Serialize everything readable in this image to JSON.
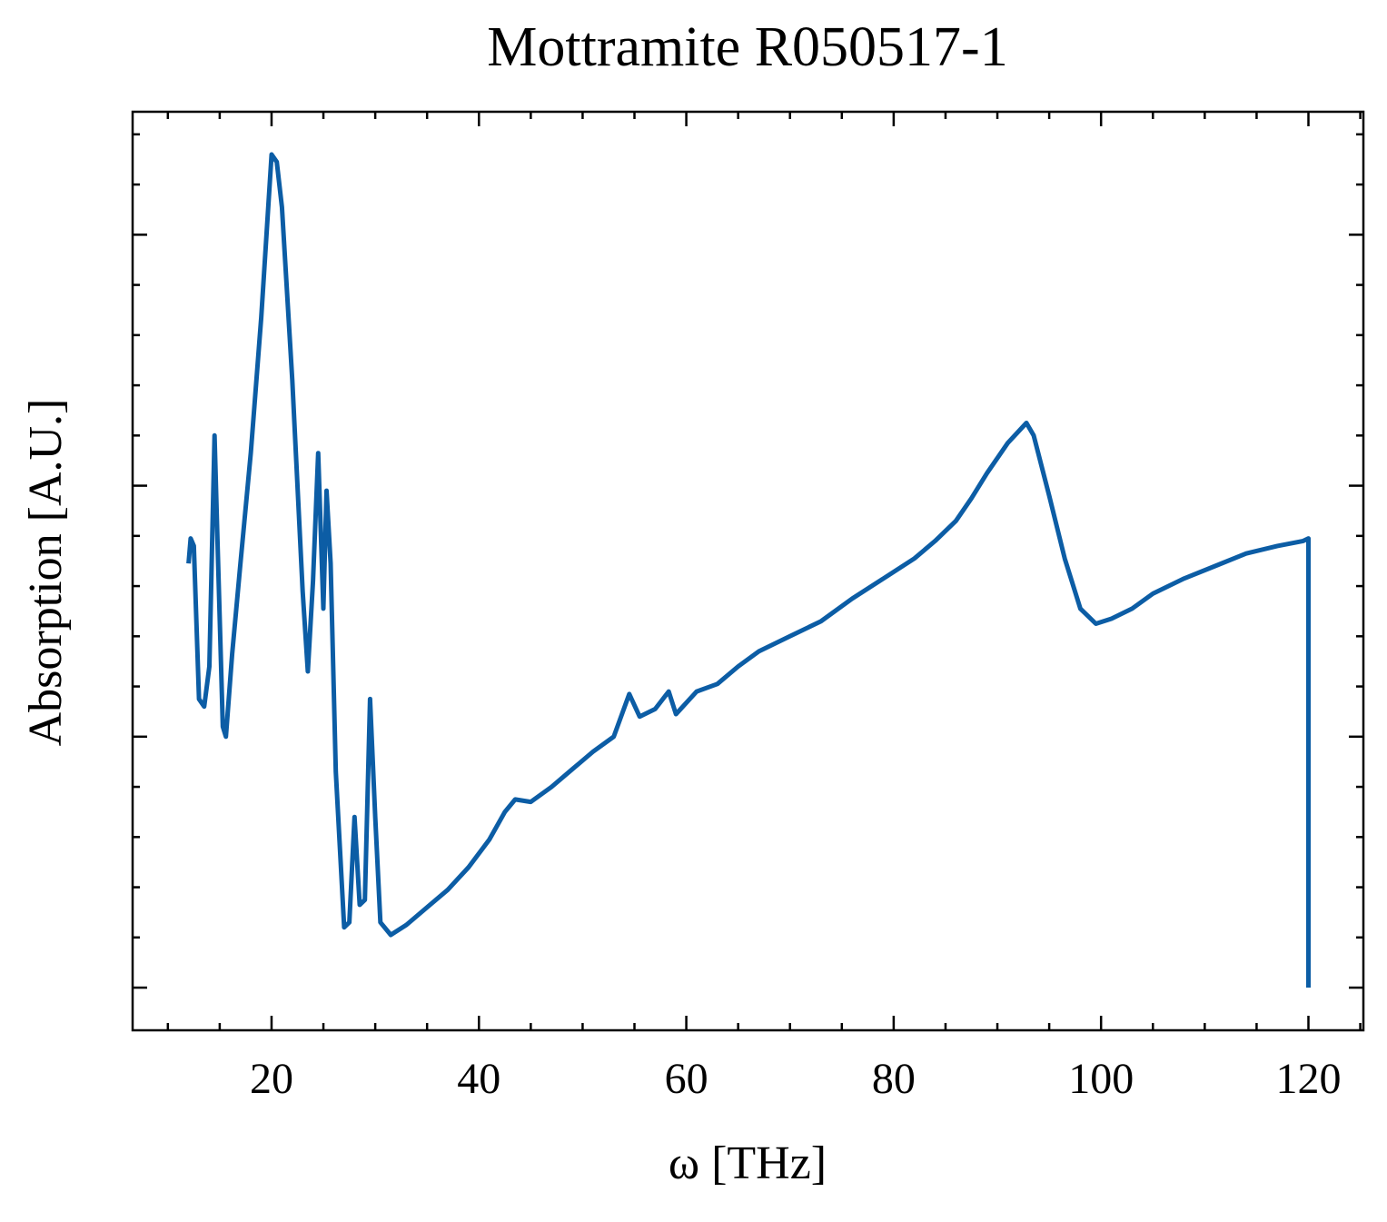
{
  "chart_data": {
    "type": "line",
    "title": "Mottramite R050517-1",
    "xlabel": "ω [THz]",
    "ylabel": "Absorption [A.U.]",
    "x": [
      12,
      12.2,
      12.5,
      13,
      13.5,
      14,
      14.5,
      14.8,
      15.3,
      15.6,
      16.2,
      17,
      18,
      19,
      20,
      20.5,
      21,
      22,
      23,
      23.5,
      24,
      24.5,
      25,
      25.3,
      25.7,
      26.2,
      27,
      27.5,
      28,
      28.5,
      29,
      29.5,
      30,
      30.5,
      31.5,
      33,
      35,
      37,
      39,
      41,
      42.5,
      43.5,
      45,
      47,
      49,
      51,
      53,
      54.5,
      55.5,
      57,
      58.3,
      59,
      61,
      63,
      65,
      67,
      70,
      73,
      76,
      79,
      82,
      84,
      86,
      87.5,
      89,
      91,
      92.8,
      93.5,
      95,
      96.5,
      98,
      99.5,
      101,
      103,
      105,
      108,
      111,
      114,
      117,
      119.5,
      120,
      120
    ],
    "values": [
      1.69,
      1.79,
      1.76,
      1.15,
      1.12,
      1.28,
      2.2,
      1.76,
      1.04,
      1.0,
      1.33,
      1.69,
      2.13,
      2.67,
      3.32,
      3.29,
      3.11,
      2.42,
      1.58,
      1.26,
      1.62,
      2.13,
      1.51,
      1.98,
      1.69,
      0.86,
      0.24,
      0.26,
      0.68,
      0.33,
      0.35,
      1.15,
      0.68,
      0.26,
      0.21,
      0.25,
      0.32,
      0.39,
      0.48,
      0.59,
      0.7,
      0.75,
      0.74,
      0.8,
      0.87,
      0.94,
      1.0,
      1.17,
      1.08,
      1.11,
      1.18,
      1.09,
      1.18,
      1.21,
      1.28,
      1.34,
      1.4,
      1.46,
      1.55,
      1.63,
      1.71,
      1.78,
      1.86,
      1.95,
      2.05,
      2.17,
      2.25,
      2.2,
      1.96,
      1.71,
      1.51,
      1.45,
      1.47,
      1.51,
      1.57,
      1.63,
      1.68,
      1.73,
      1.76,
      1.78,
      1.79,
      0
    ],
    "color": "#0c5da5",
    "xlim": [
      6.6,
      125.3
    ],
    "xticks": [
      20,
      40,
      60,
      80,
      100,
      120
    ],
    "xminorticks": [
      10,
      15,
      25,
      30,
      35,
      45,
      50,
      55,
      65,
      70,
      75,
      85,
      90,
      95,
      105,
      110,
      115,
      125
    ],
    "ylim": [
      -0.17,
      3.49
    ],
    "yticks": [
      0,
      1,
      2,
      3
    ],
    "yminorticks": [
      0.2,
      0.4,
      0.6,
      0.8,
      1.2,
      1.4,
      1.6,
      1.8,
      2.2,
      2.4,
      2.6,
      2.8,
      3.2,
      3.4
    ],
    "ytick_labels": false,
    "ticks_inside": true,
    "grid": false
  }
}
